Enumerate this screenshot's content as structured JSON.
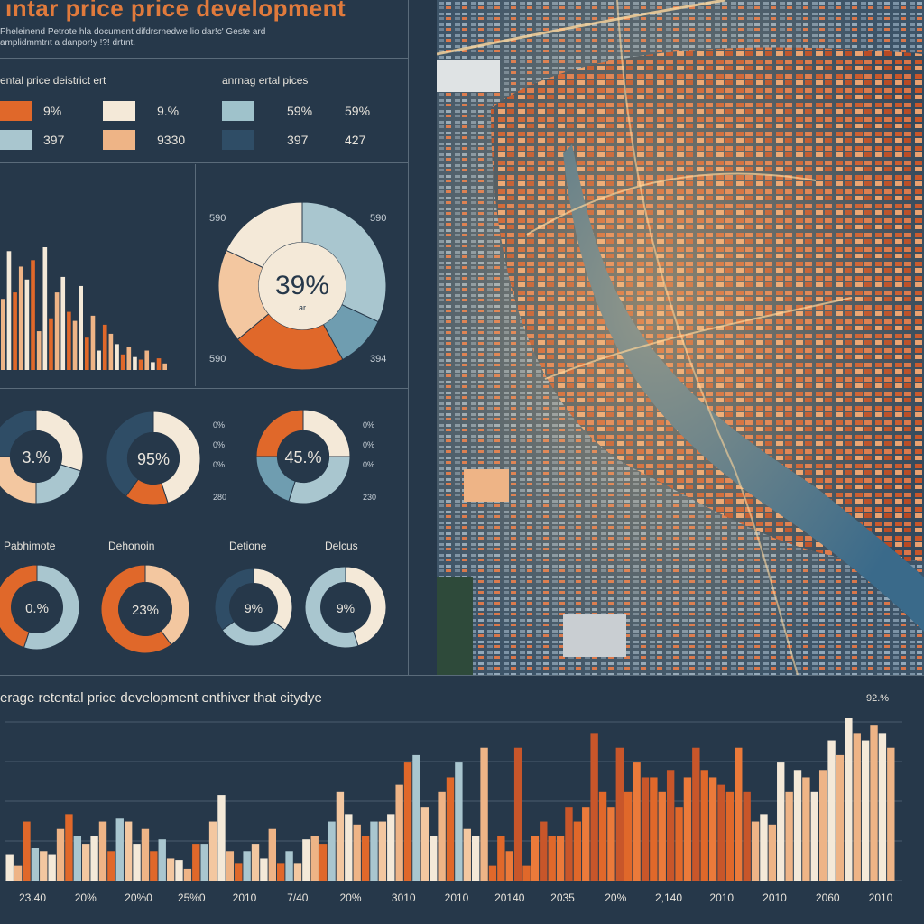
{
  "header": {
    "title": "ıntar price price development",
    "subtitle_lines": [
      "Pheleinend Petrote hla document difdrsrnedwe lio dar!c' Geste ard",
      "amplidmmtrıt a danpor!y !?! drtınt."
    ]
  },
  "legend_left": {
    "heading": "ental price deistrict ert",
    "items": [
      {
        "color": "#e0682a",
        "value": "9%"
      },
      {
        "color": "#f4e9d8",
        "value": "9.%"
      },
      {
        "color": "#a9c6cf",
        "value": "397"
      },
      {
        "color": "#eeb486",
        "value": "9330"
      }
    ]
  },
  "legend_right": {
    "heading": "anrnag ertal pices",
    "items": [
      {
        "color": "#9fc2cb",
        "value": "59%",
        "value2": "59%"
      },
      {
        "color": "#2f4d66",
        "value": "397",
        "value2": "427"
      }
    ]
  },
  "big_donut": {
    "center_value": "39%",
    "center_caption": "ar",
    "corner_labels": {
      "tl": "590",
      "tr": "590",
      "bl": "590",
      "br": "394"
    },
    "slices": [
      {
        "value": 32,
        "color": "#a9c6cf"
      },
      {
        "value": 10,
        "color": "#6f9db0"
      },
      {
        "value": 22,
        "color": "#e0682a"
      },
      {
        "value": 18,
        "color": "#f3c7a0"
      },
      {
        "value": 18,
        "color": "#f4e9d8"
      }
    ]
  },
  "small_bars": {
    "values": [
      55,
      92,
      60,
      80,
      70,
      85,
      30,
      95,
      40,
      60,
      72,
      45,
      38,
      65,
      25,
      42,
      15,
      35,
      28,
      20,
      12,
      18,
      10,
      8,
      15,
      6,
      9,
      5
    ],
    "colors": [
      "#eeb486",
      "#f4e9d8",
      "#e0682a"
    ]
  },
  "donut_row1": [
    {
      "center": "3.%",
      "slices": [
        {
          "value": 30,
          "color": "#f4e9d8"
        },
        {
          "value": 20,
          "color": "#a9c6cf"
        },
        {
          "value": 25,
          "color": "#f3c7a0"
        },
        {
          "value": 25,
          "color": "#2f4d66"
        }
      ]
    },
    {
      "center": "95%",
      "slices": [
        {
          "value": 45,
          "color": "#f4e9d8"
        },
        {
          "value": 15,
          "color": "#e0682a"
        },
        {
          "value": 40,
          "color": "#2f4d66"
        }
      ]
    },
    {
      "center": "45.%",
      "slices": [
        {
          "value": 25,
          "color": "#f4e9d8"
        },
        {
          "value": 30,
          "color": "#a9c6cf"
        },
        {
          "value": 20,
          "color": "#6f9db0"
        },
        {
          "value": 25,
          "color": "#e0682a"
        }
      ]
    }
  ],
  "donut_row1_ticks": [
    [
      "0%",
      "0%",
      "0%",
      "280"
    ],
    [
      "0%",
      "0%",
      "0%",
      "230"
    ]
  ],
  "donut_row2_labels": [
    "Pabhimote",
    "Dehonoin",
    "Detione",
    "Delcus"
  ],
  "donut_row2": [
    {
      "center": "0.%",
      "slices": [
        {
          "value": 55,
          "color": "#a9c6cf"
        },
        {
          "value": 45,
          "color": "#e0682a"
        }
      ]
    },
    {
      "center": "23%",
      "slices": [
        {
          "value": 40,
          "color": "#f3c7a0"
        },
        {
          "value": 60,
          "color": "#e0682a"
        }
      ]
    },
    {
      "center": "9%",
      "slices": [
        {
          "value": 35,
          "color": "#f4e9d8"
        },
        {
          "value": 30,
          "color": "#a9c6cf"
        },
        {
          "value": 35,
          "color": "#2f4d66"
        }
      ]
    },
    {
      "center": "9%",
      "slices": [
        {
          "value": 45,
          "color": "#f4e9d8"
        },
        {
          "value": 55,
          "color": "#a9c6cf"
        }
      ]
    }
  ],
  "chart_data": {
    "type": "bar",
    "title": "erage retental price development enthiver that citydye",
    "corner_label": "92.%",
    "x_tick_labels": [
      "23.40",
      "20%",
      "20%0",
      "25%0",
      "2010",
      "7/40",
      "20%",
      "3010",
      "2010",
      "20140",
      "2035",
      "20%",
      "2,140",
      "2010",
      "2010",
      "2060",
      "2010"
    ],
    "values": [
      18,
      10,
      40,
      22,
      20,
      18,
      35,
      45,
      30,
      25,
      30,
      40,
      20,
      42,
      40,
      25,
      35,
      20,
      28,
      15,
      14,
      8,
      25,
      25,
      40,
      58,
      20,
      12,
      20,
      25,
      15,
      35,
      12,
      20,
      12,
      28,
      30,
      25,
      40,
      60,
      45,
      38,
      30,
      40,
      40,
      45,
      65,
      80,
      85,
      50,
      30,
      60,
      70,
      80,
      35,
      30,
      90,
      10,
      30,
      20,
      90,
      10,
      30,
      40,
      30,
      30,
      50,
      40,
      50,
      100,
      60,
      50,
      90,
      60,
      80,
      70,
      70,
      60,
      75,
      50,
      70,
      90,
      75,
      70,
      65,
      60,
      90,
      60,
      40,
      45,
      38,
      80,
      60,
      75,
      70,
      60,
      75,
      95,
      85,
      110,
      100,
      95,
      105,
      100,
      90
    ],
    "colors": [
      "#f4e9d8",
      "#eeb486",
      "#e0682a",
      "#a9c6cf",
      "#f3c7a0"
    ]
  }
}
